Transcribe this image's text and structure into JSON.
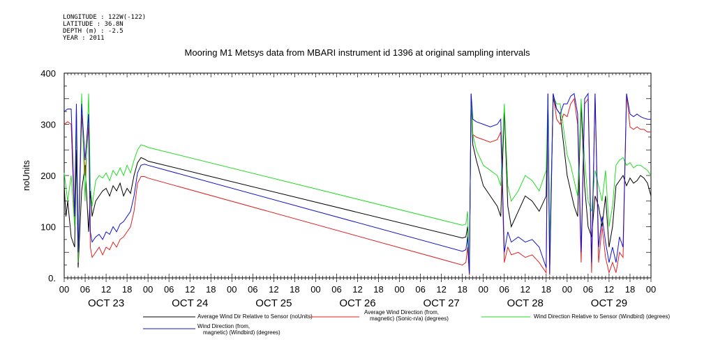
{
  "metadata": {
    "longitude": "LONGITUDE : 122W(-122)",
    "latitude": "LATITUDE : 36.8N",
    "depth": "DEPTH (m) : -2.5",
    "year": "YEAR : 2011"
  },
  "chart_data": {
    "type": "line",
    "title": "Mooring M1 Metsys data from MBARI instrument id 1396 at original sampling intervals",
    "ylabel": "noUnits",
    "xlabel": "",
    "ylim": [
      0,
      400
    ],
    "yticks": [
      0,
      100,
      200,
      300,
      400
    ],
    "xlim_hours": [
      0,
      168
    ],
    "x_tick_labels": [
      "00",
      "06",
      "12",
      "18",
      "00",
      "06",
      "12",
      "18",
      "00",
      "06",
      "12",
      "18",
      "00",
      "06",
      "12",
      "18",
      "00",
      "06",
      "12",
      "18",
      "00",
      "06",
      "12",
      "18",
      "00",
      "06",
      "12",
      "18",
      "00"
    ],
    "day_labels": [
      "OCT 23",
      "OCT 24",
      "OCT 25",
      "OCT 26",
      "OCT 27",
      "OCT 28",
      "OCT 29"
    ],
    "grid": false,
    "legend_position": "bottom",
    "series": [
      {
        "name": "Average Wind Dir Relative to Sensor (noUnits)",
        "color": "#000000",
        "points": [
          [
            0,
            180
          ],
          [
            0.5,
            120
          ],
          [
            1,
            150
          ],
          [
            2,
            80
          ],
          [
            3,
            60
          ],
          [
            3.5,
            250
          ],
          [
            4,
            20
          ],
          [
            5,
            170
          ],
          [
            6,
            220
          ],
          [
            7,
            90
          ],
          [
            7.5,
            170
          ],
          [
            8,
            120
          ],
          [
            9,
            150
          ],
          [
            10,
            160
          ],
          [
            11,
            170
          ],
          [
            12,
            175
          ],
          [
            13,
            160
          ],
          [
            14,
            180
          ],
          [
            15,
            170
          ],
          [
            16,
            185
          ],
          [
            17,
            160
          ],
          [
            18,
            175
          ],
          [
            19,
            165
          ],
          [
            20,
            200
          ],
          [
            21,
            225
          ],
          [
            22,
            235
          ],
          [
            23,
            232
          ],
          [
            24,
            228
          ],
          [
            114,
            78
          ],
          [
            115,
            80
          ],
          [
            115.5,
            100
          ],
          [
            116,
            10
          ],
          [
            116.5,
            350
          ],
          [
            117,
            260
          ],
          [
            118,
            230
          ],
          [
            120,
            180
          ],
          [
            122,
            160
          ],
          [
            124,
            140
          ],
          [
            125,
            120
          ],
          [
            126,
            330
          ],
          [
            127,
            140
          ],
          [
            128,
            100
          ],
          [
            130,
            130
          ],
          [
            132,
            160
          ],
          [
            134,
            150
          ],
          [
            136,
            130
          ],
          [
            138,
            160
          ],
          [
            138.5,
            350
          ],
          [
            139,
            40
          ],
          [
            140,
            350
          ],
          [
            141,
            330
          ],
          [
            142,
            320
          ],
          [
            143,
            260
          ],
          [
            144,
            200
          ],
          [
            145,
            170
          ],
          [
            146,
            140
          ],
          [
            147,
            120
          ],
          [
            148,
            340
          ],
          [
            149,
            180
          ],
          [
            150,
            100
          ],
          [
            151,
            80
          ],
          [
            152,
            160
          ],
          [
            153,
            140
          ],
          [
            154,
            100
          ],
          [
            155,
            160
          ],
          [
            156,
            60
          ],
          [
            157,
            100
          ],
          [
            158,
            180
          ],
          [
            159,
            190
          ],
          [
            160,
            200
          ],
          [
            161,
            180
          ],
          [
            162,
            195
          ],
          [
            163,
            185
          ],
          [
            164,
            190
          ],
          [
            165,
            200
          ],
          [
            166,
            195
          ],
          [
            167,
            185
          ],
          [
            168,
            160
          ]
        ]
      },
      {
        "name": "Average Wind Direction (from, magnetic) (Sonic-n/a) (degrees)",
        "color": "#e02020",
        "points": [
          [
            0,
            300
          ],
          [
            1,
            305
          ],
          [
            2,
            300
          ],
          [
            3,
            100
          ],
          [
            3.5,
            330
          ],
          [
            4,
            30
          ],
          [
            5,
            320
          ],
          [
            6,
            200
          ],
          [
            7,
            300
          ],
          [
            7.5,
            60
          ],
          [
            8,
            40
          ],
          [
            9,
            50
          ],
          [
            10,
            60
          ],
          [
            11,
            45
          ],
          [
            12,
            60
          ],
          [
            13,
            55
          ],
          [
            14,
            70
          ],
          [
            15,
            60
          ],
          [
            16,
            75
          ],
          [
            17,
            80
          ],
          [
            18,
            90
          ],
          [
            19,
            100
          ],
          [
            20,
            130
          ],
          [
            21,
            185
          ],
          [
            22,
            198
          ],
          [
            23,
            198
          ],
          [
            24,
            195
          ],
          [
            114,
            25
          ],
          [
            115,
            30
          ],
          [
            115.5,
            60
          ],
          [
            116,
            5
          ],
          [
            116.5,
            360
          ],
          [
            117,
            280
          ],
          [
            118,
            275
          ],
          [
            120,
            270
          ],
          [
            122,
            265
          ],
          [
            124,
            270
          ],
          [
            125,
            285
          ],
          [
            126,
            30
          ],
          [
            127,
            60
          ],
          [
            128,
            45
          ],
          [
            130,
            50
          ],
          [
            132,
            40
          ],
          [
            134,
            45
          ],
          [
            136,
            30
          ],
          [
            137,
            20
          ],
          [
            138,
            10
          ],
          [
            138.5,
            360
          ],
          [
            139,
            5
          ],
          [
            140,
            360
          ],
          [
            141,
            310
          ],
          [
            142,
            300
          ],
          [
            143,
            320
          ],
          [
            144,
            315
          ],
          [
            145,
            340
          ],
          [
            146,
            350
          ],
          [
            147,
            300
          ],
          [
            148,
            30
          ],
          [
            149,
            340
          ],
          [
            150,
            350
          ],
          [
            151,
            10
          ],
          [
            152,
            360
          ],
          [
            153,
            30
          ],
          [
            154,
            100
          ],
          [
            155,
            40
          ],
          [
            156,
            10
          ],
          [
            157,
            30
          ],
          [
            158,
            10
          ],
          [
            159,
            50
          ],
          [
            160,
            40
          ],
          [
            161,
            360
          ],
          [
            162,
            295
          ],
          [
            163,
            290
          ],
          [
            164,
            295
          ],
          [
            165,
            290
          ],
          [
            166,
            290
          ],
          [
            167,
            285
          ],
          [
            168,
            285
          ]
        ]
      },
      {
        "name": "Wind Direction Relative to Sensor (Windbird) (degrees)",
        "color": "#22dd22",
        "points": [
          [
            0,
            205
          ],
          [
            1,
            150
          ],
          [
            2,
            200
          ],
          [
            3,
            100
          ],
          [
            3.5,
            330
          ],
          [
            4,
            30
          ],
          [
            5,
            360
          ],
          [
            6,
            150
          ],
          [
            7,
            360
          ],
          [
            7.5,
            180
          ],
          [
            8,
            140
          ],
          [
            9,
            190
          ],
          [
            10,
            200
          ],
          [
            11,
            195
          ],
          [
            12,
            205
          ],
          [
            13,
            190
          ],
          [
            14,
            210
          ],
          [
            15,
            200
          ],
          [
            16,
            215
          ],
          [
            17,
            200
          ],
          [
            18,
            220
          ],
          [
            19,
            205
          ],
          [
            20,
            230
          ],
          [
            21,
            250
          ],
          [
            22,
            260
          ],
          [
            23,
            258
          ],
          [
            24,
            255
          ],
          [
            114,
            103
          ],
          [
            115,
            105
          ],
          [
            115.5,
            130
          ],
          [
            116,
            10
          ],
          [
            116.5,
            355
          ],
          [
            117,
            280
          ],
          [
            118,
            250
          ],
          [
            120,
            220
          ],
          [
            122,
            210
          ],
          [
            124,
            200
          ],
          [
            125,
            180
          ],
          [
            126,
            340
          ],
          [
            127,
            180
          ],
          [
            128,
            150
          ],
          [
            130,
            170
          ],
          [
            132,
            200
          ],
          [
            134,
            190
          ],
          [
            136,
            170
          ],
          [
            138,
            210
          ],
          [
            138.5,
            355
          ],
          [
            139,
            60
          ],
          [
            140,
            355
          ],
          [
            141,
            340
          ],
          [
            142,
            340
          ],
          [
            143,
            290
          ],
          [
            144,
            240
          ],
          [
            145,
            220
          ],
          [
            146,
            190
          ],
          [
            147,
            160
          ],
          [
            148,
            350
          ],
          [
            149,
            230
          ],
          [
            150,
            150
          ],
          [
            151,
            130
          ],
          [
            152,
            210
          ],
          [
            153,
            180
          ],
          [
            154,
            150
          ],
          [
            155,
            210
          ],
          [
            156,
            100
          ],
          [
            157,
            140
          ],
          [
            158,
            220
          ],
          [
            159,
            230
          ],
          [
            160,
            235
          ],
          [
            161,
            220
          ],
          [
            162,
            225
          ],
          [
            163,
            215
          ],
          [
            164,
            220
          ],
          [
            165,
            220
          ],
          [
            166,
            215
          ],
          [
            167,
            210
          ],
          [
            168,
            200
          ]
        ]
      },
      {
        "name": "Wind Direction (from, magnetic) (Windbird) (degrees)",
        "color": "#1010cc",
        "points": [
          [
            0,
            325
          ],
          [
            1,
            330
          ],
          [
            2,
            330
          ],
          [
            3,
            120
          ],
          [
            3.5,
            340
          ],
          [
            4,
            50
          ],
          [
            5,
            340
          ],
          [
            6,
            230
          ],
          [
            7,
            320
          ],
          [
            7.5,
            90
          ],
          [
            8,
            70
          ],
          [
            9,
            80
          ],
          [
            10,
            85
          ],
          [
            11,
            75
          ],
          [
            12,
            90
          ],
          [
            13,
            85
          ],
          [
            14,
            100
          ],
          [
            15,
            90
          ],
          [
            16,
            105
          ],
          [
            17,
            110
          ],
          [
            18,
            120
          ],
          [
            19,
            130
          ],
          [
            20,
            160
          ],
          [
            21,
            205
          ],
          [
            22,
            220
          ],
          [
            23,
            222
          ],
          [
            24,
            220
          ],
          [
            114,
            52
          ],
          [
            115,
            55
          ],
          [
            115.5,
            80
          ],
          [
            116,
            8
          ],
          [
            116.5,
            360
          ],
          [
            117,
            310
          ],
          [
            118,
            305
          ],
          [
            120,
            300
          ],
          [
            122,
            295
          ],
          [
            124,
            300
          ],
          [
            125,
            310
          ],
          [
            126,
            50
          ],
          [
            127,
            90
          ],
          [
            128,
            70
          ],
          [
            130,
            80
          ],
          [
            132,
            70
          ],
          [
            134,
            75
          ],
          [
            136,
            60
          ],
          [
            137,
            40
          ],
          [
            138,
            20
          ],
          [
            138.5,
            360
          ],
          [
            139,
            8
          ],
          [
            140,
            360
          ],
          [
            141,
            330
          ],
          [
            142,
            320
          ],
          [
            143,
            340
          ],
          [
            144,
            340
          ],
          [
            145,
            355
          ],
          [
            146,
            360
          ],
          [
            147,
            320
          ],
          [
            148,
            50
          ],
          [
            149,
            350
          ],
          [
            150,
            360
          ],
          [
            151,
            30
          ],
          [
            152,
            360
          ],
          [
            153,
            60
          ],
          [
            154,
            120
          ],
          [
            155,
            70
          ],
          [
            156,
            30
          ],
          [
            157,
            60
          ],
          [
            158,
            30
          ],
          [
            159,
            80
          ],
          [
            160,
            60
          ],
          [
            161,
            360
          ],
          [
            162,
            320
          ],
          [
            163,
            315
          ],
          [
            164,
            320
          ],
          [
            165,
            315
          ],
          [
            166,
            312
          ],
          [
            167,
            310
          ],
          [
            168,
            310
          ]
        ]
      }
    ]
  }
}
